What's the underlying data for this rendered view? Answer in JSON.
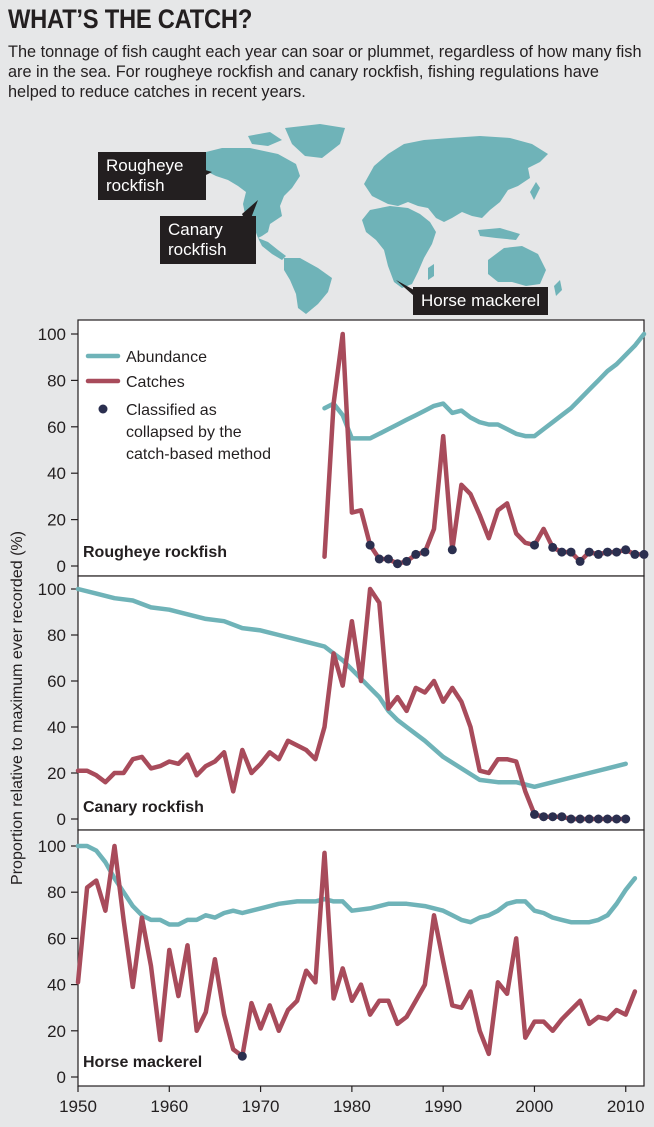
{
  "title": "WHAT’S THE CATCH?",
  "subtitle": "The tonnage of fish caught each year can soar or plummet, regardless of how many fish are in the sea. For rougheye rockfish and canary rockfish, fishing regulations have helped to reduce catches in recent years.",
  "map": {
    "callouts": {
      "rougheye": "Rougheye rockfish",
      "canary": "Canary rockfish",
      "horse": "Horse mackerel"
    }
  },
  "colors": {
    "abundance": "#6fb3b8",
    "catches": "#a84b5b",
    "collapsed": "#2b2f4f",
    "map_land": "#6fb3b8",
    "panel_bg": "#ffffff"
  },
  "chart_data": {
    "type": "line",
    "xlabel": "",
    "ylabel": "Proportion relative to maximum ever recorded (%)",
    "xlim": [
      1950,
      2012
    ],
    "ylim": [
      0,
      100
    ],
    "xticks": [
      1950,
      1960,
      1970,
      1980,
      1990,
      2000,
      2010
    ],
    "yticks": [
      0,
      20,
      40,
      60,
      80,
      100
    ],
    "legend": {
      "position": "top-left",
      "items": [
        {
          "key": "abundance",
          "label": "Abundance"
        },
        {
          "key": "catches",
          "label": "Catches"
        },
        {
          "key": "collapsed",
          "label": "Classified as collapsed by the catch-based method"
        }
      ]
    },
    "panels": [
      {
        "name": "Rougheye rockfish",
        "abundance": {
          "x": [
            1977,
            1978,
            1979,
            1980,
            1981,
            1982,
            1983,
            1984,
            1985,
            1986,
            1987,
            1988,
            1989,
            1990,
            1991,
            1992,
            1993,
            1994,
            1995,
            1996,
            1997,
            1998,
            1999,
            2000,
            2001,
            2002,
            2003,
            2004,
            2005,
            2006,
            2007,
            2008,
            2009,
            2010,
            2011,
            2012
          ],
          "y": [
            68,
            70,
            65,
            55,
            55,
            55,
            57,
            59,
            61,
            63,
            65,
            67,
            69,
            70,
            66,
            67,
            64,
            62,
            61,
            61,
            59,
            57,
            56,
            56,
            59,
            62,
            65,
            68,
            72,
            76,
            80,
            84,
            87,
            91,
            95,
            100
          ]
        },
        "catches": {
          "x": [
            1977,
            1978,
            1979,
            1980,
            1981,
            1982,
            1983,
            1984,
            1985,
            1986,
            1987,
            1988,
            1989,
            1990,
            1991,
            1992,
            1993,
            1994,
            1995,
            1996,
            1997,
            1998,
            1999,
            2000,
            2001,
            2002,
            2003,
            2004,
            2005,
            2006,
            2007,
            2008,
            2009,
            2010,
            2011,
            2012
          ],
          "y": [
            4,
            70,
            100,
            23,
            24,
            9,
            3,
            3,
            1,
            2,
            5,
            6,
            16,
            56,
            7,
            35,
            31,
            22,
            12,
            24,
            27,
            14,
            10,
            9,
            16,
            8,
            6,
            6,
            2,
            6,
            5,
            6,
            6,
            7,
            5,
            5
          ]
        },
        "collapsed": {
          "x": [
            1982,
            1983,
            1984,
            1985,
            1986,
            1987,
            1988,
            1991,
            2000,
            2002,
            2003,
            2004,
            2005,
            2006,
            2007,
            2008,
            2009,
            2010,
            2011,
            2012
          ],
          "y": [
            9,
            3,
            3,
            1,
            2,
            5,
            6,
            7,
            9,
            8,
            6,
            6,
            2,
            6,
            5,
            6,
            6,
            7,
            5,
            5
          ]
        }
      },
      {
        "name": "Canary rockfish",
        "abundance": {
          "x": [
            1950,
            1952,
            1954,
            1956,
            1958,
            1960,
            1962,
            1964,
            1966,
            1968,
            1970,
            1972,
            1974,
            1976,
            1977,
            1978,
            1979,
            1980,
            1981,
            1982,
            1983,
            1984,
            1985,
            1986,
            1987,
            1988,
            1990,
            1992,
            1994,
            1996,
            1998,
            2000,
            2002,
            2004,
            2006,
            2008,
            2010
          ],
          "y": [
            100,
            98,
            96,
            95,
            92,
            91,
            89,
            87,
            86,
            83,
            82,
            80,
            78,
            76,
            75,
            72,
            69,
            65,
            61,
            57,
            53,
            47,
            43,
            40,
            37,
            34,
            27,
            22,
            17,
            16,
            16,
            14,
            16,
            18,
            20,
            22,
            24
          ]
        },
        "catches": {
          "x": [
            1950,
            1951,
            1952,
            1953,
            1954,
            1955,
            1956,
            1957,
            1958,
            1959,
            1960,
            1961,
            1962,
            1963,
            1964,
            1965,
            1966,
            1967,
            1968,
            1969,
            1970,
            1971,
            1972,
            1973,
            1974,
            1975,
            1976,
            1977,
            1978,
            1979,
            1980,
            1981,
            1982,
            1983,
            1984,
            1985,
            1986,
            1987,
            1988,
            1989,
            1990,
            1991,
            1992,
            1993,
            1994,
            1995,
            1996,
            1997,
            1998,
            1999,
            2000,
            2001,
            2002,
            2003,
            2004,
            2005,
            2006,
            2007,
            2008,
            2009,
            2010
          ],
          "y": [
            21,
            21,
            19,
            16,
            20,
            20,
            26,
            27,
            22,
            23,
            25,
            24,
            28,
            19,
            23,
            25,
            29,
            12,
            30,
            20,
            24,
            29,
            26,
            34,
            32,
            30,
            26,
            40,
            72,
            58,
            86,
            60,
            100,
            94,
            48,
            53,
            47,
            57,
            55,
            60,
            51,
            57,
            51,
            40,
            21,
            20,
            26,
            26,
            25,
            12,
            2,
            1,
            1,
            1,
            0,
            0,
            0,
            0,
            0,
            0,
            0
          ]
        },
        "collapsed": {
          "x": [
            2000,
            2001,
            2002,
            2003,
            2004,
            2005,
            2006,
            2007,
            2008,
            2009,
            2010
          ],
          "y": [
            2,
            1,
            1,
            1,
            0,
            0,
            0,
            0,
            0,
            0,
            0
          ]
        }
      },
      {
        "name": "Horse mackerel",
        "abundance": {
          "x": [
            1950,
            1951,
            1952,
            1953,
            1954,
            1955,
            1956,
            1957,
            1958,
            1959,
            1960,
            1961,
            1962,
            1963,
            1964,
            1965,
            1966,
            1967,
            1968,
            1969,
            1970,
            1972,
            1974,
            1976,
            1977,
            1978,
            1979,
            1980,
            1982,
            1984,
            1986,
            1988,
            1990,
            1991,
            1992,
            1993,
            1994,
            1995,
            1996,
            1997,
            1998,
            1999,
            2000,
            2001,
            2002,
            2003,
            2004,
            2005,
            2006,
            2007,
            2008,
            2009,
            2010,
            2011
          ],
          "y": [
            100,
            100,
            98,
            93,
            86,
            80,
            74,
            70,
            68,
            68,
            66,
            66,
            68,
            68,
            70,
            69,
            71,
            72,
            71,
            72,
            73,
            75,
            76,
            76,
            77,
            76,
            76,
            72,
            73,
            75,
            75,
            74,
            72,
            70,
            68,
            67,
            69,
            70,
            72,
            75,
            76,
            76,
            72,
            71,
            69,
            68,
            67,
            67,
            67,
            68,
            70,
            75,
            81,
            86
          ]
        },
        "catches": {
          "x": [
            1950,
            1951,
            1952,
            1953,
            1954,
            1955,
            1956,
            1957,
            1958,
            1959,
            1960,
            1961,
            1962,
            1963,
            1964,
            1965,
            1966,
            1967,
            1968,
            1969,
            1970,
            1971,
            1972,
            1973,
            1974,
            1975,
            1976,
            1977,
            1978,
            1979,
            1980,
            1981,
            1982,
            1983,
            1984,
            1985,
            1986,
            1987,
            1988,
            1989,
            1990,
            1991,
            1992,
            1993,
            1994,
            1995,
            1996,
            1997,
            1998,
            1999,
            2000,
            2001,
            2002,
            2003,
            2004,
            2005,
            2006,
            2007,
            2008,
            2009,
            2010,
            2011
          ],
          "y": [
            41,
            82,
            85,
            72,
            100,
            68,
            39,
            69,
            48,
            16,
            55,
            35,
            57,
            20,
            28,
            51,
            27,
            12,
            9,
            32,
            21,
            31,
            20,
            29,
            33,
            46,
            41,
            97,
            34,
            47,
            33,
            40,
            27,
            33,
            33,
            23,
            26,
            33,
            40,
            70,
            50,
            31,
            30,
            37,
            20,
            10,
            41,
            36,
            60,
            17,
            24,
            24,
            20,
            25,
            29,
            33,
            23,
            26,
            25,
            29,
            27,
            37
          ]
        },
        "collapsed": {
          "x": [
            1968
          ],
          "y": [
            9
          ]
        }
      }
    ]
  }
}
